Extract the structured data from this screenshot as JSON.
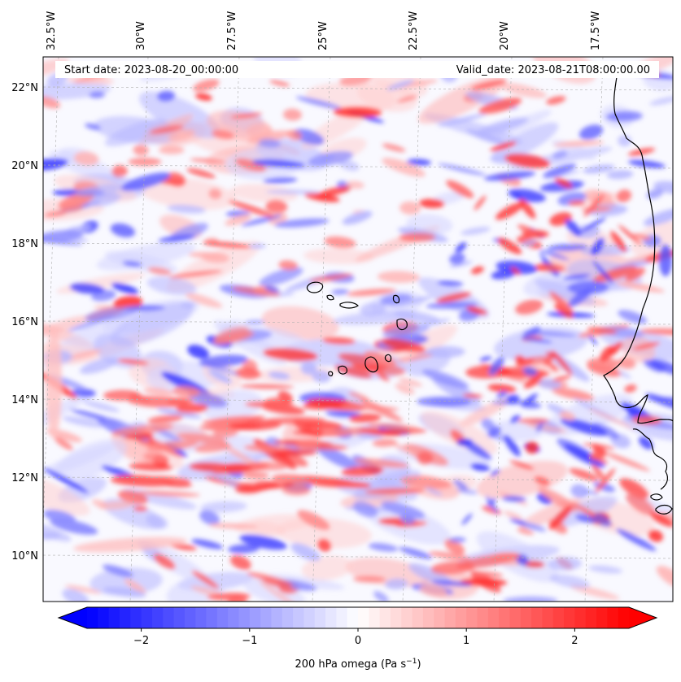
{
  "map": {
    "header": {
      "start_date": "Start date: 2023-08-20_00:00:00",
      "valid_date": "Valid_date: 2023-08-21T08:00:00.00"
    },
    "lon_labels": [
      "32.5°W",
      "30°W",
      "27.5°W",
      "25°W",
      "22.5°W",
      "20°W",
      "17.5°W"
    ],
    "lat_labels": [
      "22°N",
      "20°N",
      "18°N",
      "16°N",
      "14°N",
      "12°N",
      "10°N"
    ],
    "colormap": "bwr",
    "colors": {
      "negative": "#0000ff",
      "zero": "#ffffff",
      "positive": "#ff0000"
    }
  },
  "colorbar": {
    "range": [
      -2.5,
      2.5
    ],
    "ticks": [
      {
        "value": -2,
        "label": "−2"
      },
      {
        "value": -1,
        "label": "−1"
      },
      {
        "value": 0,
        "label": "0"
      },
      {
        "value": 1,
        "label": "1"
      },
      {
        "value": 2,
        "label": "2"
      }
    ],
    "label": "200 hPa omega (Pa s",
    "label_sup": "−1",
    "label_close": ")"
  }
}
